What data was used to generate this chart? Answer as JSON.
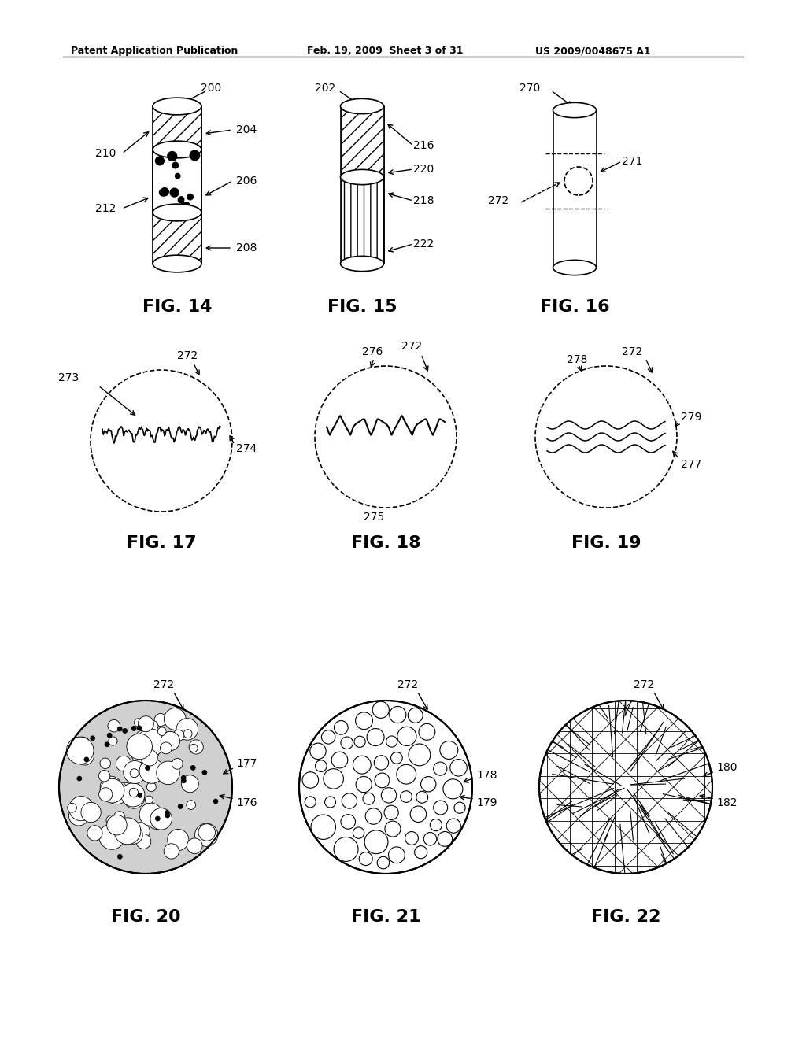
{
  "header_left": "Patent Application Publication",
  "header_mid": "Feb. 19, 2009  Sheet 3 of 31",
  "header_right": "US 2009/0048675 A1",
  "background_color": "#ffffff",
  "line_color": "#000000",
  "fig14_label": "FIG. 14",
  "fig15_label": "FIG. 15",
  "fig16_label": "FIG. 16",
  "fig17_label": "FIG. 17",
  "fig18_label": "FIG. 18",
  "fig19_label": "FIG. 19",
  "fig20_label": "FIG. 20",
  "fig21_label": "FIG. 21",
  "fig22_label": "FIG. 22"
}
